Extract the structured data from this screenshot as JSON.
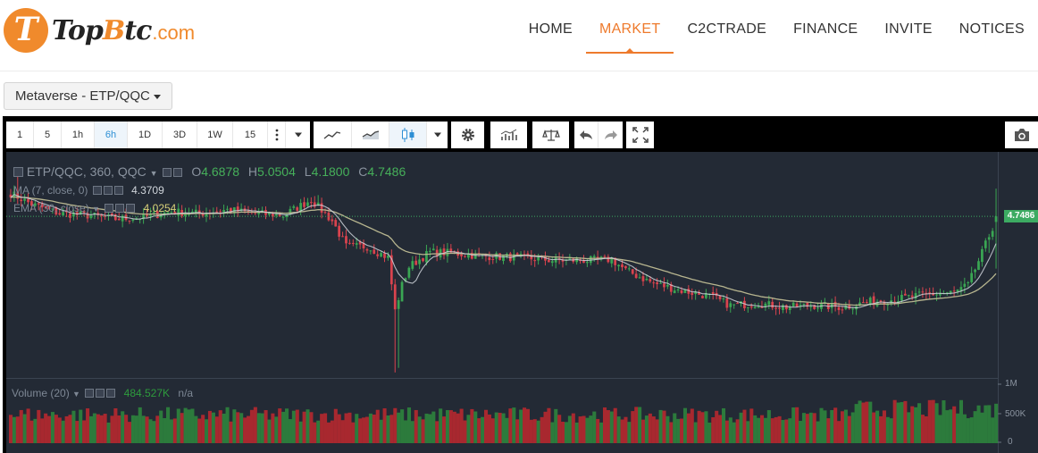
{
  "header": {
    "logo": {
      "mark": "T",
      "name_part1": "Top",
      "name_b": "B",
      "name_part2": "tc",
      "domain": ".com"
    },
    "nav": [
      {
        "label": "HOME",
        "active": false
      },
      {
        "label": "MARKET",
        "active": true
      },
      {
        "label": "C2CTRADE",
        "active": false
      },
      {
        "label": "FINANCE",
        "active": false
      },
      {
        "label": "INVITE",
        "active": false
      },
      {
        "label": "NOTICES",
        "active": false
      }
    ]
  },
  "pair_selector": {
    "label": "Metaverse - ETP/QQC"
  },
  "toolbar": {
    "intervals": [
      "1",
      "5",
      "1h",
      "6h",
      "1D",
      "3D",
      "1W",
      "15"
    ],
    "active_interval": "6h",
    "icons": [
      "more-vertical-icon",
      "dropdown-arrow-icon",
      "line-chart-icon",
      "area-chart-icon",
      "candlestick-icon",
      "style-dropdown-icon",
      "settings-gear-icon",
      "indicators-icon",
      "compare-scale-icon",
      "undo-icon",
      "redo-icon",
      "fullscreen-icon",
      "camera-snapshot-icon"
    ]
  },
  "legend": {
    "symbol": "ETP/QQC, 360, QQC",
    "ohlc": [
      {
        "k": "O",
        "v": "4.6878"
      },
      {
        "k": "H",
        "v": "5.0504"
      },
      {
        "k": "L",
        "v": "4.1800"
      },
      {
        "k": "C",
        "v": "4.7486"
      }
    ],
    "ma_label": "MA (7, close, 0)",
    "ma_value": "4.3709",
    "ema_label": "EMA (30, close)",
    "ema_value": "4.0254",
    "volume_label": "Volume (20)",
    "volume_value": "484.527K",
    "volume_extra": "n/a"
  },
  "last_price_tag": "4.7486",
  "volume_axis_labels": [
    "1M",
    "500K",
    "0"
  ],
  "colors": {
    "up": "#3aa653",
    "down": "#d9434e",
    "background": "#232a35",
    "accent": "#ee7a2c",
    "ma_line": "#cfd4da",
    "ema_line": "#b7b58f"
  },
  "chart_data": {
    "type": "candlestick",
    "title": "ETP/QQC, 360, QQC",
    "interval": "6h",
    "ylim": [
      3.0,
      5.45
    ],
    "last": {
      "open": 4.6878,
      "high": 5.0504,
      "low": 4.18,
      "close": 4.7486
    },
    "anchors_close": [
      [
        0,
        5.0
      ],
      [
        6,
        4.88
      ],
      [
        14,
        4.78
      ],
      [
        22,
        4.76
      ],
      [
        30,
        4.72
      ],
      [
        38,
        4.74
      ],
      [
        46,
        4.8
      ],
      [
        54,
        4.78
      ],
      [
        62,
        4.82
      ],
      [
        70,
        4.78
      ],
      [
        78,
        4.76
      ],
      [
        86,
        4.93
      ],
      [
        92,
        4.7
      ],
      [
        96,
        4.42
      ],
      [
        102,
        4.42
      ],
      [
        108,
        4.3
      ],
      [
        110,
        3.72
      ],
      [
        112,
        4.0
      ],
      [
        114,
        4.2
      ],
      [
        120,
        4.36
      ],
      [
        126,
        4.35
      ],
      [
        134,
        4.32
      ],
      [
        145,
        4.3
      ],
      [
        155,
        4.27
      ],
      [
        165,
        4.27
      ],
      [
        172,
        4.28
      ],
      [
        176,
        4.16
      ],
      [
        184,
        4.02
      ],
      [
        192,
        3.94
      ],
      [
        200,
        3.88
      ],
      [
        206,
        3.78
      ],
      [
        214,
        3.8
      ],
      [
        222,
        3.76
      ],
      [
        230,
        3.78
      ],
      [
        238,
        3.76
      ],
      [
        246,
        3.82
      ],
      [
        254,
        3.85
      ],
      [
        262,
        3.9
      ],
      [
        270,
        3.92
      ],
      [
        274,
        4.0
      ],
      [
        278,
        4.35
      ],
      [
        282,
        4.72
      ]
    ],
    "volume_range": [
      0,
      1000000
    ],
    "volume_level_avg": 470000
  }
}
